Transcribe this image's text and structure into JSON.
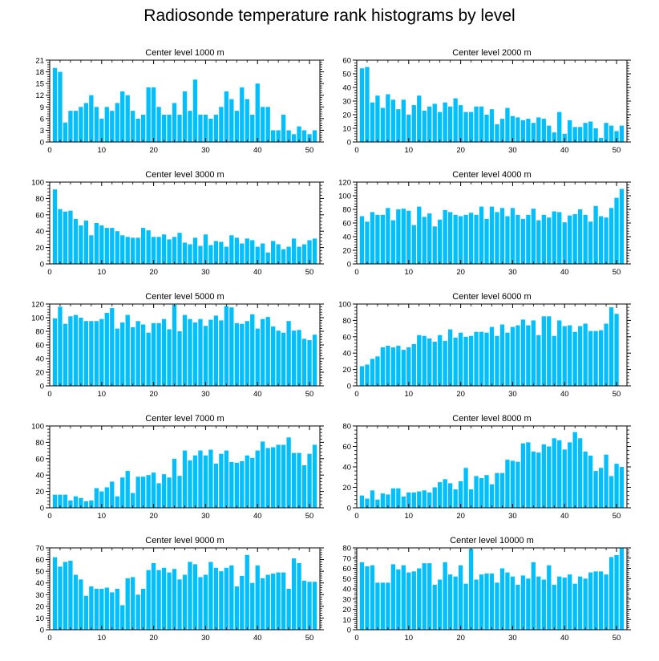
{
  "title": "Radiosonde temperature rank histograms by level",
  "colors": {
    "bar": "#00bfff",
    "axis": "#000000",
    "background": "#ffffff"
  },
  "chart_data": [
    {
      "type": "bar",
      "title": "Center level 1000 m",
      "xlim": [
        0,
        52
      ],
      "ylim": [
        0,
        21
      ],
      "yticks": [
        0,
        3,
        6,
        9,
        12,
        15,
        18,
        21
      ],
      "xticks": [
        0,
        10,
        20,
        30,
        40,
        50
      ],
      "values": [
        19,
        18,
        5,
        8,
        8,
        9,
        10,
        12,
        9,
        6,
        9,
        8,
        10,
        13,
        12,
        8,
        6,
        7,
        14,
        14,
        9,
        7,
        7,
        10,
        7,
        13,
        8,
        16,
        7,
        7,
        6,
        7,
        9,
        13,
        11,
        8,
        14,
        11,
        7,
        15,
        9,
        9,
        3,
        3,
        7,
        3,
        2,
        4,
        3,
        2,
        3
      ]
    },
    {
      "type": "bar",
      "title": "Center level 2000 m",
      "xlim": [
        0,
        52
      ],
      "ylim": [
        0,
        60
      ],
      "yticks": [
        0,
        10,
        20,
        30,
        40,
        50,
        60
      ],
      "xticks": [
        0,
        10,
        20,
        30,
        40,
        50
      ],
      "values": [
        54,
        55,
        29,
        34,
        25,
        35,
        31,
        24,
        31,
        20,
        27,
        34,
        23,
        26,
        28,
        22,
        29,
        26,
        32,
        27,
        22,
        22,
        26,
        26,
        20,
        24,
        13,
        17,
        25,
        19,
        18,
        16,
        17,
        14,
        18,
        17,
        12,
        7,
        22,
        6,
        16,
        11,
        11,
        14,
        15,
        10,
        3,
        14,
        12,
        8,
        12
      ]
    },
    {
      "type": "bar",
      "title": "Center level 3000 m",
      "xlim": [
        0,
        52
      ],
      "ylim": [
        0,
        100
      ],
      "yticks": [
        0,
        20,
        40,
        60,
        80,
        100
      ],
      "xticks": [
        0,
        10,
        20,
        30,
        40,
        50
      ],
      "values": [
        91,
        67,
        64,
        65,
        55,
        47,
        53,
        35,
        50,
        47,
        44,
        44,
        40,
        35,
        33,
        32,
        32,
        44,
        41,
        33,
        33,
        36,
        30,
        33,
        38,
        26,
        24,
        32,
        22,
        36,
        23,
        28,
        27,
        21,
        35,
        32,
        25,
        31,
        29,
        21,
        25,
        14,
        28,
        24,
        18,
        21,
        31,
        21,
        24,
        29,
        31
      ]
    },
    {
      "type": "bar",
      "title": "Center level 4000 m",
      "xlim": [
        0,
        52
      ],
      "ylim": [
        0,
        120
      ],
      "yticks": [
        0,
        20,
        40,
        60,
        80,
        100,
        120
      ],
      "xticks": [
        0,
        10,
        20,
        30,
        40,
        50
      ],
      "values": [
        70,
        62,
        76,
        72,
        72,
        82,
        64,
        80,
        81,
        78,
        57,
        84,
        69,
        74,
        55,
        65,
        79,
        76,
        72,
        70,
        72,
        75,
        72,
        84,
        66,
        84,
        76,
        82,
        70,
        82,
        72,
        66,
        72,
        81,
        64,
        72,
        68,
        77,
        76,
        61,
        71,
        73,
        80,
        72,
        62,
        85,
        70,
        68,
        82,
        97,
        110
      ]
    },
    {
      "type": "bar",
      "title": "Center level 5000 m",
      "xlim": [
        0,
        52
      ],
      "ylim": [
        0,
        120
      ],
      "yticks": [
        0,
        20,
        40,
        60,
        80,
        100,
        120
      ],
      "xticks": [
        0,
        10,
        20,
        30,
        40,
        50
      ],
      "values": [
        99,
        116,
        91,
        102,
        104,
        100,
        95,
        95,
        95,
        98,
        107,
        114,
        84,
        93,
        104,
        86,
        95,
        90,
        78,
        92,
        92,
        98,
        83,
        119,
        80,
        104,
        98,
        93,
        98,
        88,
        97,
        103,
        96,
        117,
        115,
        92,
        91,
        95,
        105,
        84,
        98,
        101,
        87,
        81,
        78,
        95,
        81,
        82,
        69,
        67,
        75
      ]
    },
    {
      "type": "bar",
      "title": "Center level 6000 m",
      "xlim": [
        0,
        52
      ],
      "ylim": [
        0,
        100
      ],
      "yticks": [
        0,
        20,
        40,
        60,
        80,
        100
      ],
      "xticks": [
        0,
        10,
        20,
        30,
        40,
        50
      ],
      "values": [
        24,
        26,
        33,
        36,
        47,
        49,
        47,
        49,
        44,
        47,
        51,
        62,
        61,
        58,
        54,
        62,
        55,
        69,
        59,
        65,
        60,
        61,
        66,
        66,
        65,
        72,
        61,
        75,
        65,
        72,
        74,
        81,
        74,
        80,
        62,
        85,
        85,
        61,
        80,
        73,
        74,
        66,
        73,
        76,
        67,
        67,
        68,
        76,
        96,
        88,
        0
      ]
    },
    {
      "type": "bar",
      "title": "Center level 7000 m",
      "xlim": [
        0,
        52
      ],
      "ylim": [
        0,
        100
      ],
      "yticks": [
        0,
        20,
        40,
        60,
        80,
        100
      ],
      "xticks": [
        0,
        10,
        20,
        30,
        40,
        50
      ],
      "values": [
        16,
        16,
        16,
        9,
        14,
        12,
        8,
        9,
        24,
        20,
        25,
        32,
        14,
        37,
        45,
        18,
        38,
        38,
        40,
        43,
        30,
        41,
        37,
        60,
        39,
        70,
        58,
        64,
        70,
        64,
        71,
        54,
        66,
        70,
        56,
        55,
        57,
        64,
        61,
        70,
        81,
        73,
        74,
        77,
        77,
        86,
        67,
        67,
        52,
        66,
        77
      ]
    },
    {
      "type": "bar",
      "title": "Center level 8000 m",
      "xlim": [
        0,
        52
      ],
      "ylim": [
        0,
        80
      ],
      "yticks": [
        0,
        20,
        40,
        60,
        80
      ],
      "xticks": [
        0,
        10,
        20,
        30,
        40,
        50
      ],
      "values": [
        12,
        9,
        17,
        8,
        14,
        13,
        19,
        19,
        11,
        15,
        15,
        16,
        17,
        15,
        20,
        25,
        28,
        24,
        18,
        26,
        39,
        18,
        31,
        29,
        32,
        23,
        34,
        34,
        47,
        46,
        45,
        63,
        64,
        55,
        54,
        62,
        60,
        68,
        66,
        57,
        64,
        74,
        68,
        55,
        51,
        36,
        39,
        52,
        31,
        43,
        40
      ]
    },
    {
      "type": "bar",
      "title": "Center level 9000 m",
      "xlim": [
        0,
        52
      ],
      "ylim": [
        0,
        70
      ],
      "yticks": [
        0,
        10,
        20,
        30,
        40,
        50,
        60,
        70
      ],
      "xticks": [
        0,
        10,
        20,
        30,
        40,
        50
      ],
      "values": [
        62,
        54,
        58,
        59,
        47,
        43,
        29,
        37,
        35,
        35,
        36,
        32,
        35,
        21,
        44,
        45,
        30,
        35,
        51,
        57,
        51,
        53,
        49,
        52,
        43,
        47,
        58,
        56,
        45,
        47,
        58,
        53,
        50,
        53,
        55,
        37,
        46,
        64,
        40,
        55,
        44,
        47,
        48,
        49,
        49,
        35,
        61,
        57,
        42,
        41,
        41
      ]
    },
    {
      "type": "bar",
      "title": "Center level 10000 m",
      "xlim": [
        0,
        52
      ],
      "ylim": [
        0,
        80
      ],
      "yticks": [
        0,
        10,
        20,
        30,
        40,
        50,
        60,
        70,
        80
      ],
      "xticks": [
        0,
        10,
        20,
        30,
        40,
        50
      ],
      "values": [
        66,
        62,
        63,
        46,
        46,
        46,
        64,
        59,
        63,
        56,
        57,
        60,
        65,
        65,
        44,
        49,
        66,
        54,
        52,
        63,
        45,
        79,
        49,
        54,
        55,
        55,
        46,
        60,
        56,
        52,
        44,
        53,
        50,
        66,
        52,
        49,
        63,
        44,
        52,
        51,
        54,
        45,
        52,
        50,
        56,
        57,
        57,
        54,
        71,
        73,
        80
      ]
    }
  ]
}
